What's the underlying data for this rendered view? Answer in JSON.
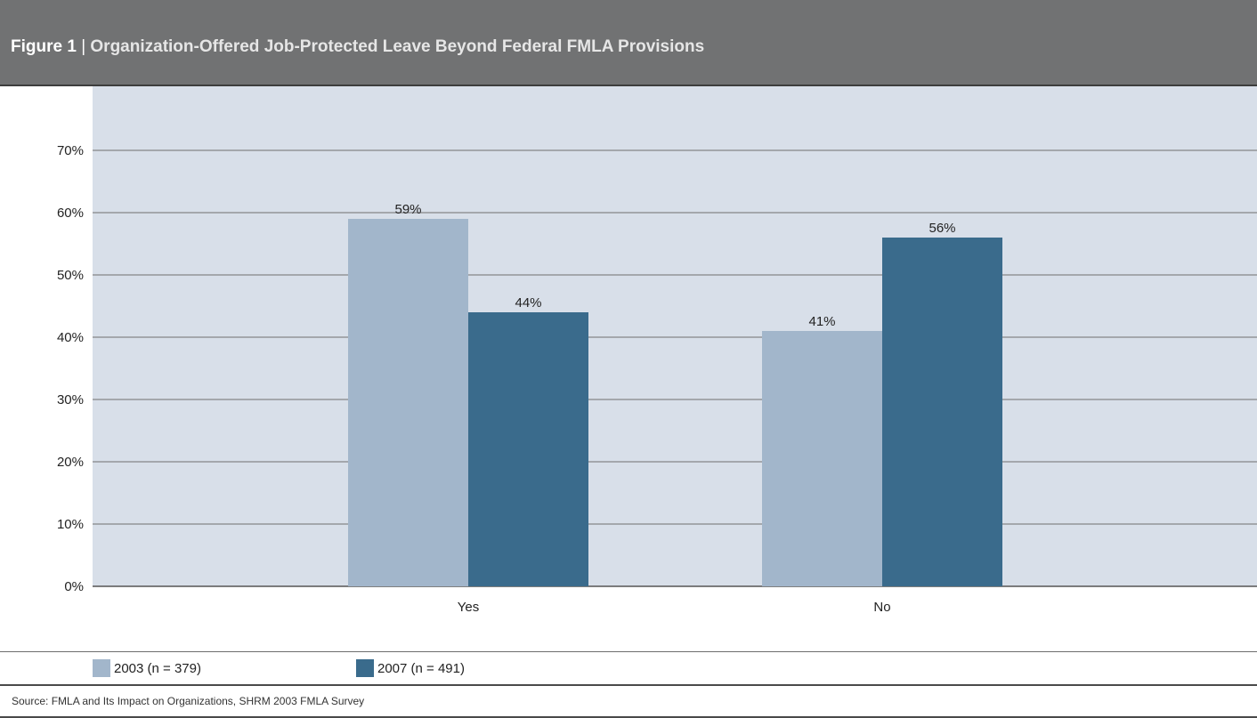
{
  "header": {
    "figure_label": "Figure 1",
    "separator": "|",
    "title": "Organization-Offered Job-Protected Leave Beyond Federal FMLA Provisions"
  },
  "colors": {
    "header_bg": "#717273",
    "plot_bg": "#d8dfe9",
    "series_2003": "#a2b6cb",
    "series_2007": "#3a6b8c"
  },
  "chart_data": {
    "type": "bar",
    "title": "Organization-Offered Job-Protected Leave Beyond Federal FMLA Provisions",
    "categories": [
      "Yes",
      "No"
    ],
    "series": [
      {
        "name": "2003 (n = 379)",
        "values": [
          59,
          41
        ],
        "labels": [
          "59%",
          "41%"
        ],
        "color": "#a2b6cb"
      },
      {
        "name": "2007 (n = 491)",
        "values": [
          44,
          56
        ],
        "labels": [
          "44%",
          "56%"
        ],
        "color": "#3a6b8c"
      }
    ],
    "ylim": [
      0,
      70
    ],
    "yticks": [
      0,
      10,
      20,
      30,
      40,
      50,
      60,
      70
    ],
    "ytick_labels": [
      "0%",
      "10%",
      "20%",
      "30%",
      "40%",
      "50%",
      "60%",
      "70%"
    ],
    "xlabel": "",
    "ylabel": "",
    "grid": true,
    "legend_position": "bottom-left"
  },
  "source": "Source: FMLA and Its Impact on Organizations, SHRM 2003 FMLA Survey"
}
